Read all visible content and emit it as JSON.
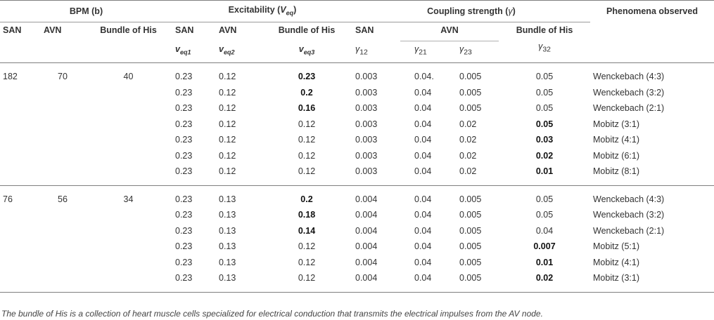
{
  "header": {
    "bpm": "BPM (b)",
    "excitability": "Excitability (",
    "excitability_sym": "V",
    "excitability_sub": "eq",
    "excitability_close": ")",
    "coupling": "Coupling strength (",
    "coupling_sym": "γ",
    "coupling_close": ")",
    "phenomena": "Phenomena observed",
    "bpm_cols": [
      "SAN",
      "AVN",
      "Bundle of His"
    ],
    "exc_cols": [
      "SAN",
      "AVN",
      "Bundle of His"
    ],
    "exc_syms": [
      {
        "v": "v",
        "sub": "eq1"
      },
      {
        "v": "v",
        "sub": "eq2"
      },
      {
        "v": "v",
        "sub": "eq3"
      }
    ],
    "coup_cols": [
      "SAN",
      "AVN",
      "Bundle of His"
    ],
    "coup_syms": [
      {
        "g": "γ",
        "sub": "12"
      },
      {
        "g": "γ",
        "sub": "21"
      },
      {
        "g": "γ",
        "sub": "23"
      },
      {
        "g": "γ",
        "sub": "32"
      }
    ]
  },
  "groups": [
    {
      "bpm": [
        "182",
        "70",
        "40"
      ],
      "rows": [
        [
          "0.23",
          "0.12",
          "0.23",
          "0.003",
          "0.04.",
          "0.005",
          "0.05",
          "Wenckebach (4:3)"
        ],
        [
          "0.23",
          "0.12",
          "0.2",
          "0.003",
          "0.04",
          "0.005",
          "0.05",
          "Wenckebach (3:2)"
        ],
        [
          "0.23",
          "0.12",
          "0.16",
          "0.003",
          "0.04",
          "0.005",
          "0.05",
          "Wenckebach (2:1)"
        ],
        [
          "0.23",
          "0.12",
          "0.12",
          "0.003",
          "0.04",
          "0.02",
          "0.05",
          "Mobitz (3:1)"
        ],
        [
          "0.23",
          "0.12",
          "0.12",
          "0.003",
          "0.04",
          "0.02",
          "0.03",
          "Mobitz (4:1)"
        ],
        [
          "0.23",
          "0.12",
          "0.12",
          "0.003",
          "0.04",
          "0.02",
          "0.02",
          "Mobitz (6:1)"
        ],
        [
          "0.23",
          "0.12",
          "0.12",
          "0.003",
          "0.04",
          "0.02",
          "0.01",
          "Mobitz (8:1)"
        ]
      ]
    },
    {
      "bpm": [
        "76",
        "56",
        "34"
      ],
      "rows": [
        [
          "0.23",
          "0.13",
          "0.2",
          "0.004",
          "0.04",
          "0.005",
          "0.05",
          "Wenckebach (4:3)"
        ],
        [
          "0.23",
          "0.13",
          "0.18",
          "0.004",
          "0.04",
          "0.005",
          "0.05",
          "Wenckebach (3:2)"
        ],
        [
          "0.23",
          "0.13",
          "0.14",
          "0.004",
          "0.04",
          "0.005",
          "0.04",
          "Wenckebach (2:1)"
        ],
        [
          "0.23",
          "0.13",
          "0.12",
          "0.004",
          "0.04",
          "0.005",
          "0.007",
          "Mobitz (5:1)"
        ],
        [
          "0.23",
          "0.13",
          "0.12",
          "0.004",
          "0.04",
          "0.005",
          "0.01",
          "Mobitz (4:1)"
        ],
        [
          "0.23",
          "0.13",
          "0.12",
          "0.004",
          "0.04",
          "0.005",
          "0.02",
          "Mobitz (3:1)"
        ]
      ]
    }
  ],
  "caption": "The bundle of His is a collection of heart muscle cells specialized for electrical conduction that transmits the electrical impulses from the AV node."
}
